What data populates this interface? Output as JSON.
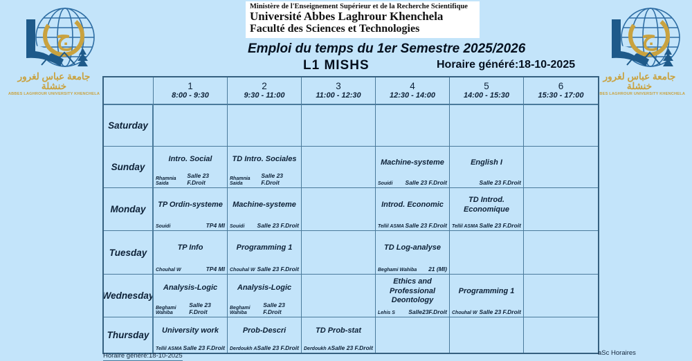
{
  "header": {
    "ministry": "Ministère de l'Enseignement Supérieur et de la Recherche Scientifique",
    "university": "Université Abbes Laghrour  Khenchela",
    "faculty": "Faculté des Sciences et Technologies",
    "title": "Emploi du temps du 1er Semestre 2025/2026",
    "group": "L1 MISHS",
    "generated": "Horaire généré:18-10-2025"
  },
  "logo": {
    "letter": "ج",
    "arabic_name": "جامعة عباس لغرور خنشلة",
    "english_name": "ABBES LAGHROUR UNIVERSITY KHENCHELA"
  },
  "colors": {
    "background": "#c3e4fa",
    "grid_line": "#4a7a9b",
    "grid_border": "#35607f",
    "text": "#0d2137",
    "logo_blue": "#1e5a8a",
    "logo_gold": "#c9a23f"
  },
  "footer": {
    "left": "Horaire généré:18-10-2025",
    "right": "aSc Horaires"
  },
  "timetable": {
    "slots": [
      {
        "num": "1",
        "time": "8:00 - 9:30"
      },
      {
        "num": "2",
        "time": "9:30 - 11:00"
      },
      {
        "num": "3",
        "time": "11:00 - 12:30"
      },
      {
        "num": "4",
        "time": "12:30 - 14:00"
      },
      {
        "num": "5",
        "time": "14:00 - 15:30"
      },
      {
        "num": "6",
        "time": "15:30 - 17:00"
      }
    ],
    "days": [
      "Saturday",
      "Sunday",
      "Monday",
      "Tuesday",
      "Wednesday",
      "Thursday"
    ],
    "rows": [
      [
        null,
        null,
        null,
        null,
        null,
        null
      ],
      [
        {
          "title": "Intro. Social",
          "teacher": "Rhamnia Saida",
          "room": "Salle 23 F.Droit"
        },
        {
          "title": "TD Intro. Sociales",
          "teacher": "Rhamnia Saida",
          "room": "Salle 23 F.Droit"
        },
        null,
        {
          "title": "Machine-systeme",
          "teacher": "Souidi",
          "room": "Salle 23 F.Droit"
        },
        {
          "title": "English I",
          "teacher": "",
          "room": "Salle 23 F.Droit"
        },
        null
      ],
      [
        {
          "title": "TP Ordin-systeme",
          "teacher": "Souidi",
          "room": "TP4 MI"
        },
        {
          "title": "Machine-systeme",
          "teacher": "Souidi",
          "room": "Salle 23 F.Droit"
        },
        null,
        {
          "title": "Introd. Economic",
          "teacher": "Tellil ASMA",
          "room": "Salle 23 F.Droit"
        },
        {
          "title": "TD Introd. Economique",
          "teacher": "Tellil ASMA",
          "room": "Salle 23 F.Droit"
        },
        null
      ],
      [
        {
          "title": "TP Info",
          "teacher": "Chouhal W",
          "room": "TP4 MI"
        },
        {
          "title": "Programming 1",
          "teacher": "Chouhal W",
          "room": "Salle 23 F.Droit"
        },
        null,
        {
          "title": "TD Log-analyse",
          "teacher": "Beghami Wahiba",
          "room": "21 (MI)"
        },
        null,
        null
      ],
      [
        {
          "title": "Analysis-Logic",
          "teacher": "Beghami Wahiba",
          "room": "Salle 23 F.Droit"
        },
        {
          "title": "Analysis-Logic",
          "teacher": "Beghami Wahiba",
          "room": "Salle 23 F.Droit"
        },
        null,
        {
          "title": "Ethics and Professional Deontology",
          "teacher": "Lehis S",
          "room": "Salle23F.Droit"
        },
        {
          "title": "Programming 1",
          "teacher": "Chouhal W",
          "room": "Salle 23 F.Droit"
        },
        null
      ],
      [
        {
          "title": "University work",
          "teacher": "Tellil ASMA",
          "room": "Salle 23 F.Droit"
        },
        {
          "title": "Prob-Descri",
          "teacher": "Derdoukh A",
          "room": "Salle 23 F.Droit"
        },
        {
          "title": "TD Prob-stat",
          "teacher": "Derdoukh A",
          "room": "Salle 23 F.Droit"
        },
        null,
        null,
        null
      ]
    ]
  }
}
